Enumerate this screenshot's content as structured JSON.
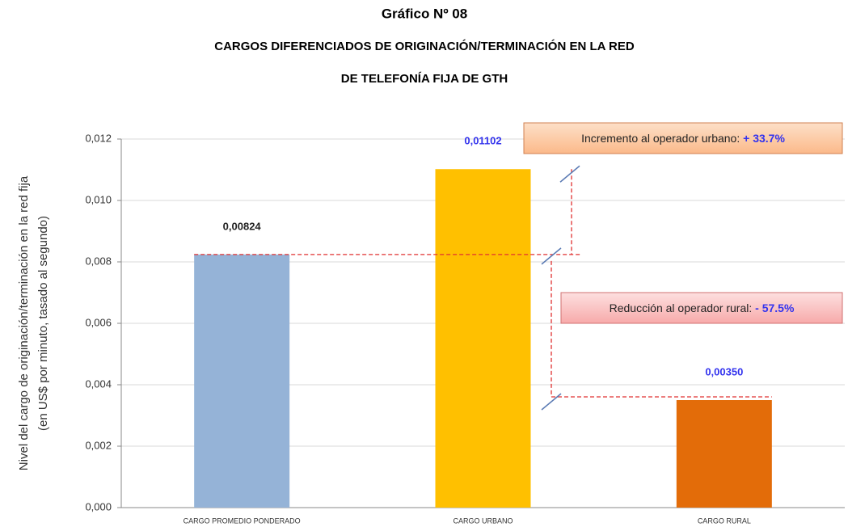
{
  "chart_data": {
    "type": "bar",
    "title": "Gráfico Nº 08",
    "subtitle": [
      "CARGOS DIFERENCIADOS DE ORIGINACIÓN/TERMINACIÓN EN LA RED",
      "DE TELEFONÍA FIJA DE GTH"
    ],
    "y_label": [
      "Nivel del cargo de originación/terminación en la red fija",
      "(en US$ por minuto, tasado al segundo)"
    ],
    "categories": [
      "CARGO PROMEDIO  PONDERADO",
      "CARGO URBANO",
      "CARGO RURAL"
    ],
    "values": [
      0.00824,
      0.01102,
      0.0035
    ],
    "value_labels": [
      "0,00824",
      "0,01102",
      "0,00350"
    ],
    "colors": [
      "#95b3d7",
      "#ffc000",
      "#e36c09"
    ],
    "label_colors": [
      "#222222",
      "#3333ee",
      "#3333ee"
    ],
    "ylim": [
      0,
      0.012
    ],
    "yticks": [
      {
        "value": 0,
        "label": "0,000"
      },
      {
        "value": 0.002,
        "label": "0,002"
      },
      {
        "value": 0.004,
        "label": "0,004"
      },
      {
        "value": 0.006,
        "label": "0,006"
      },
      {
        "value": 0.008,
        "label": "0,008"
      },
      {
        "value": 0.01,
        "label": "0,010"
      },
      {
        "value": 0.012,
        "label": "0,012"
      }
    ],
    "grid": true,
    "annotations": [
      {
        "text": "Incremento al operador urbano:",
        "highlight": "+ 33.7%"
      },
      {
        "text": "Reducción al operador rural:",
        "highlight": "- 57.5%"
      }
    ]
  }
}
